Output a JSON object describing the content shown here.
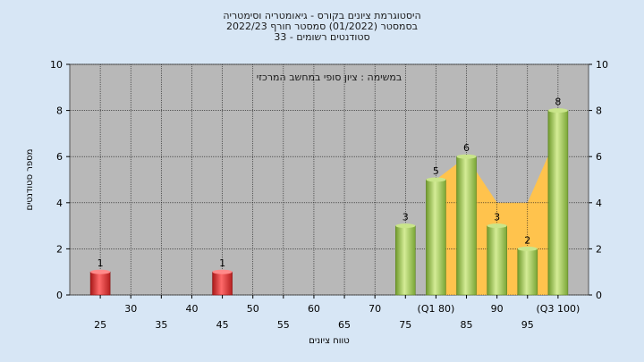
{
  "chart_data": {
    "type": "bar",
    "title_lines": [
      "היסטוגרמת ציונים בקורס - גיאומטריה וסימטריה",
      "בסמסטר  (01/2022)  סמסטר חורף 2022/23",
      "סטודנטים רשומים - 33"
    ],
    "annotation": "במשימה : ציון סופי במחשב המרכזי",
    "xlabel": "טווח ציונים",
    "ylabel": "מספר סטודנטים",
    "ylim": [
      0,
      10
    ],
    "yticks": [
      0,
      2,
      4,
      6,
      8,
      10
    ],
    "xticks": [
      {
        "x": 25,
        "label": "25",
        "row": 2
      },
      {
        "x": 30,
        "label": "30",
        "row": 1
      },
      {
        "x": 35,
        "label": "35",
        "row": 2
      },
      {
        "x": 40,
        "label": "40",
        "row": 1
      },
      {
        "x": 45,
        "label": "45",
        "row": 2
      },
      {
        "x": 50,
        "label": "50",
        "row": 1
      },
      {
        "x": 55,
        "label": "55",
        "row": 2
      },
      {
        "x": 60,
        "label": "60",
        "row": 1
      },
      {
        "x": 65,
        "label": "65",
        "row": 2
      },
      {
        "x": 70,
        "label": "70",
        "row": 1
      },
      {
        "x": 75,
        "label": "75",
        "row": 2
      },
      {
        "x": 80,
        "label": "(Q1 80)",
        "row": 1
      },
      {
        "x": 85,
        "label": "85",
        "row": 2
      },
      {
        "x": 90,
        "label": "90",
        "row": 1
      },
      {
        "x": 95,
        "label": "95",
        "row": 2
      },
      {
        "x": 100,
        "label": "(Q3 100)",
        "row": 1
      }
    ],
    "bars": [
      {
        "x": 25,
        "value": 1,
        "color": "red"
      },
      {
        "x": 45,
        "value": 1,
        "color": "red"
      },
      {
        "x": 75,
        "value": 3,
        "color": "green"
      },
      {
        "x": 80,
        "value": 5,
        "color": "green"
      },
      {
        "x": 85,
        "value": 6,
        "color": "green"
      },
      {
        "x": 90,
        "value": 3,
        "color": "green"
      },
      {
        "x": 95,
        "value": 2,
        "color": "green"
      },
      {
        "x": 100,
        "value": 8,
        "color": "green"
      }
    ],
    "band": [
      {
        "x": 80,
        "value": 5
      },
      {
        "x": 85,
        "value": 6
      },
      {
        "x": 90,
        "value": 4
      },
      {
        "x": 95,
        "value": 4
      },
      {
        "x": 100,
        "value": 7
      }
    ],
    "colors": {
      "background": "#d7e6f5",
      "plot": "#b8b8b8",
      "grid": "#1a1a1a",
      "band": "#ffc34d",
      "red_bar": "#e53030",
      "green_bar": "#9cc450"
    }
  }
}
